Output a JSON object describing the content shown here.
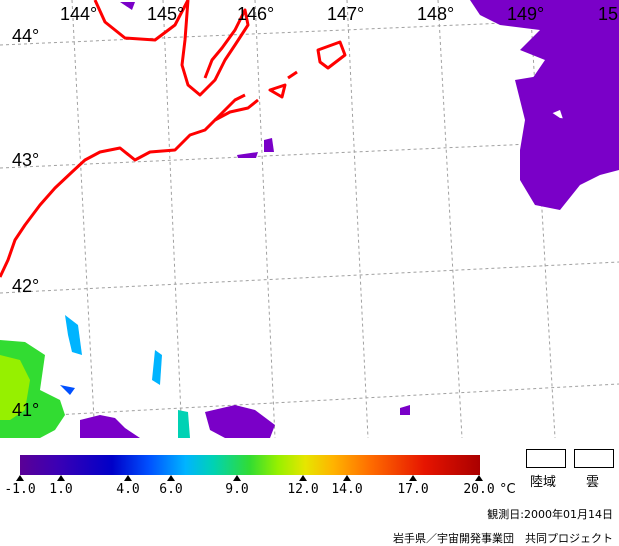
{
  "map": {
    "longitude_labels": [
      "144°",
      "145°",
      "146°",
      "147°",
      "148°",
      "149°",
      "15"
    ],
    "latitude_labels": [
      "44°",
      "43°",
      "42°",
      "41°"
    ],
    "colors": {
      "coastline": "#ff0000",
      "cloud": "#7a00c8",
      "grid": "#a0a0a0",
      "sst_warm": "#32dc32"
    }
  },
  "legend": {
    "tick_labels": [
      "-1.0",
      "1.0",
      "4.0",
      "6.0",
      "9.0",
      "12.0",
      "14.0",
      "17.0",
      "20.0"
    ],
    "unit": "°C",
    "land_label": "陸域",
    "cloud_label": "雲",
    "observation_date": "観測日:2000年01月14日",
    "credit": "岩手県／宇宙開発事業団　共同プロジェクト"
  }
}
